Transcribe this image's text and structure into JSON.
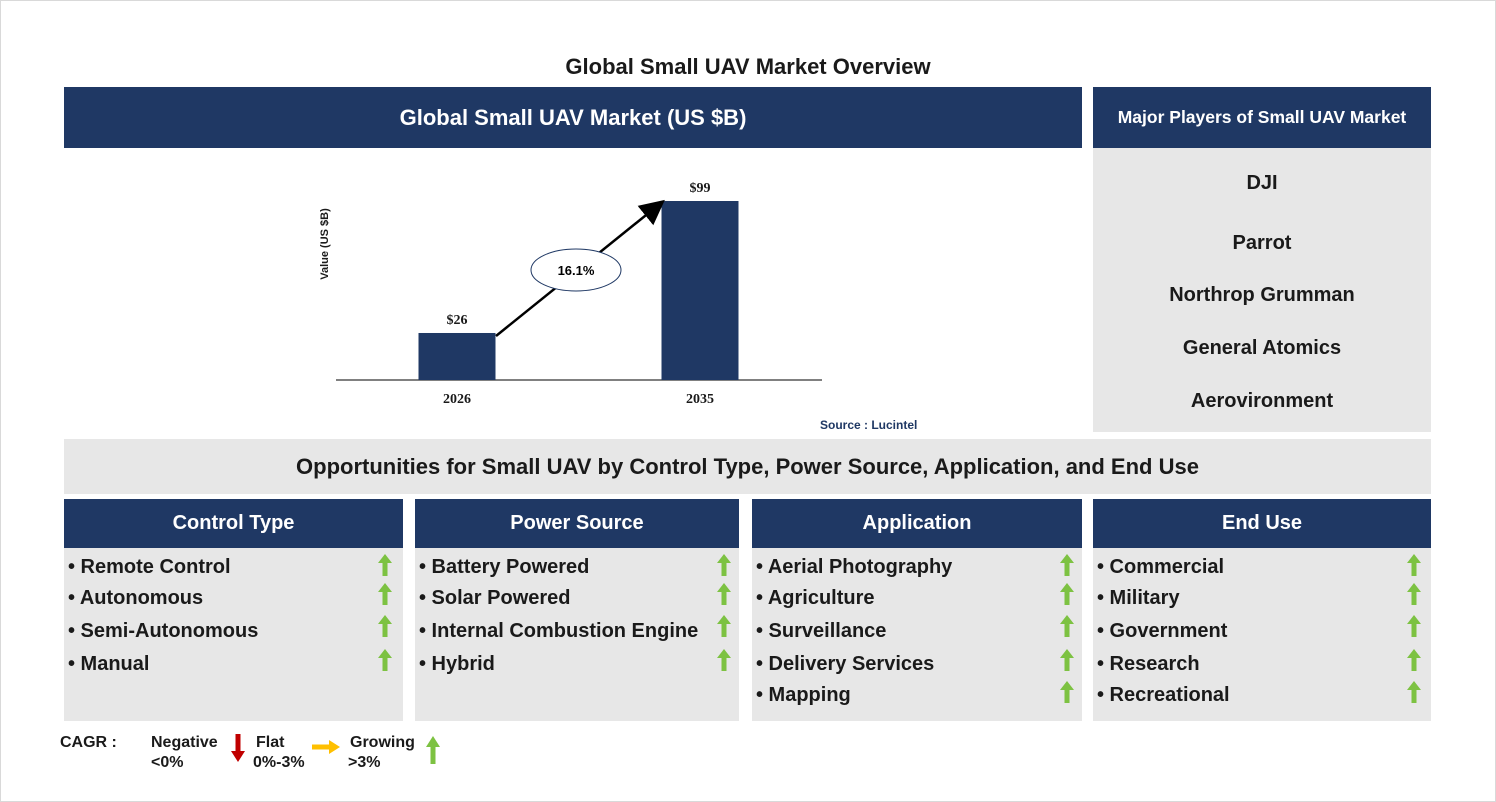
{
  "page_title": "Global Small UAV Market Overview",
  "chart_header": "Global Small UAV Market (US $B)",
  "chart_data": {
    "type": "bar",
    "categories": [
      "2026",
      "2035"
    ],
    "values": [
      26,
      99
    ],
    "value_labels": [
      "$26",
      "$99"
    ],
    "ylabel": "Value (US $B)",
    "cagr_label": "16.1%",
    "bar_color": "#1f3864"
  },
  "source": "Source : Lucintel",
  "players_header": "Major Players of Small UAV Market",
  "players": [
    "DJI",
    "Parrot",
    "Northrop Grumman",
    "General Atomics",
    "Aerovironment"
  ],
  "opportunities_title": "Opportunities for Small UAV by Control Type, Power Source, Application, and End Use",
  "columns": [
    {
      "title": "Control Type",
      "items": [
        "• Remote Control",
        "• Autonomous",
        "• Semi-Autonomous",
        "• Manual"
      ]
    },
    {
      "title": "Power Source",
      "items": [
        "• Battery Powered",
        "• Solar Powered",
        "• Internal Combustion Engine",
        "• Hybrid"
      ]
    },
    {
      "title": "Application",
      "items": [
        "• Aerial Photography",
        "• Agriculture",
        "• Surveillance",
        "• Delivery Services",
        "• Mapping"
      ]
    },
    {
      "title": "End Use",
      "items": [
        "• Commercial",
        "• Military",
        "• Government",
        "• Research",
        "• Recreational"
      ]
    }
  ],
  "legend": {
    "cagr": "CAGR :",
    "negative": "Negative",
    "negative_range": "<0%",
    "flat": "Flat",
    "flat_range": "0%-3%",
    "growing": "Growing",
    "growing_range": ">3%"
  },
  "colors": {
    "navy": "#1f3864",
    "panel_grey": "#e7e7e7",
    "growth_green": "#7dc242",
    "negative_red": "#c00000",
    "flat_amber": "#ffc000"
  },
  "icons": {
    "item_trend": "up-arrow-icon",
    "legend_negative": "down-arrow-icon",
    "legend_flat": "right-arrow-icon",
    "legend_growing": "up-arrow-icon"
  }
}
